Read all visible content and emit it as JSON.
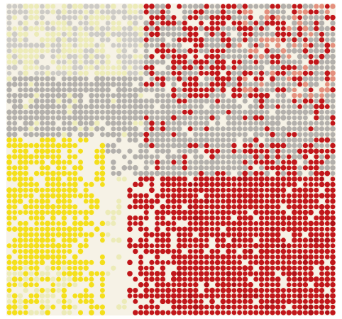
{
  "artwork": {
    "kind": "dot-grid-mosaic",
    "columns": 60,
    "rows": 56,
    "colors": {
      "background": "#f6f2e6",
      "pale_yellow": "#ecebb8",
      "yellow": "#f4df1a",
      "gray": "#b3b0ac",
      "light_gray": "#cdcbc6",
      "red": "#c1161a",
      "dark_red": "#b01016",
      "salmon": "#e4907e"
    }
  }
}
